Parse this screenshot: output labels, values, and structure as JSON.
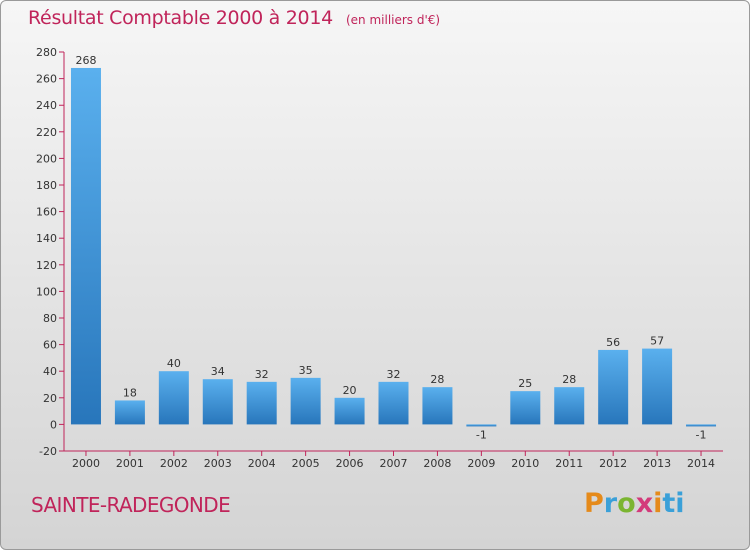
{
  "chart_data": {
    "type": "bar",
    "title": "Résultat Comptable 2000 à 2014",
    "unit_note": "(en milliers d'€)",
    "categories": [
      "2000",
      "2001",
      "2002",
      "2003",
      "2004",
      "2005",
      "2006",
      "2007",
      "2008",
      "2009",
      "2010",
      "2011",
      "2012",
      "2013",
      "2014"
    ],
    "values": [
      268,
      18,
      40,
      34,
      32,
      35,
      20,
      32,
      28,
      -1,
      25,
      28,
      56,
      57,
      -1
    ],
    "ylim": [
      -20,
      280
    ],
    "ytick_step": 20,
    "xlabel": "",
    "ylabel": "",
    "bar_color": "#3d95d6",
    "grid": false
  },
  "commune": "SAINTE-RADEGONDE",
  "brand": {
    "letters": [
      "P",
      "r",
      "o",
      "x",
      "i",
      "ti"
    ]
  },
  "colors": {
    "title": "#c0245a",
    "axis": "#c0245a"
  }
}
